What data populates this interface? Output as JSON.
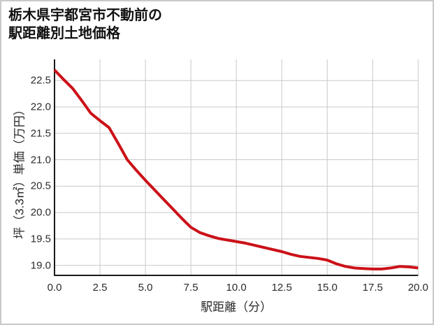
{
  "chart_data": {
    "type": "line",
    "title_line1": "栃木県宇都宮市不動前の",
    "title_line2": "駅距離別土地価格",
    "xlabel": "駅距離（分）",
    "ylabel": "坪（3.3㎡）単価（万円）",
    "xlim": [
      0,
      20
    ],
    "ylim": [
      18.81,
      22.9
    ],
    "x_ticks": [
      0,
      2.5,
      5,
      7.5,
      10,
      12.5,
      15,
      17.5,
      20
    ],
    "x_tick_labels": [
      "0.0",
      "2.5",
      "5.0",
      "7.5",
      "10.0",
      "12.5",
      "15.0",
      "17.5",
      "20.0"
    ],
    "y_ticks": [
      19,
      19.5,
      20,
      20.5,
      21,
      21.5,
      22,
      22.5
    ],
    "y_tick_labels": [
      "19.0",
      "19.5",
      "20.0",
      "20.5",
      "21.0",
      "21.5",
      "22.0",
      "22.5"
    ],
    "grid": true,
    "grid_color": "#c9c9c9",
    "spine_color": "#1a1a1a",
    "line_color": "#cc1118",
    "series": [
      {
        "name": "駅距離別土地価格",
        "x": [
          0,
          0.5,
          1,
          1.5,
          2,
          2.5,
          3,
          3.5,
          4,
          4.5,
          5,
          5.5,
          6,
          6.5,
          7,
          7.5,
          8,
          8.5,
          9,
          9.5,
          10,
          10.5,
          11,
          11.5,
          12,
          12.5,
          13,
          13.5,
          14,
          14.5,
          15,
          15.5,
          16,
          16.5,
          17,
          17.5,
          18,
          18.5,
          19,
          19.5,
          20
        ],
        "y": [
          22.7,
          22.52,
          22.35,
          22.12,
          21.88,
          21.74,
          21.61,
          21.31,
          21.0,
          20.8,
          20.61,
          20.43,
          20.25,
          20.07,
          19.89,
          19.72,
          19.62,
          19.56,
          19.51,
          19.48,
          19.45,
          19.42,
          19.38,
          19.34,
          19.3,
          19.26,
          19.21,
          19.17,
          19.15,
          19.13,
          19.1,
          19.03,
          18.98,
          18.95,
          18.94,
          18.93,
          18.93,
          18.95,
          18.98,
          18.97,
          18.95
        ]
      }
    ]
  }
}
